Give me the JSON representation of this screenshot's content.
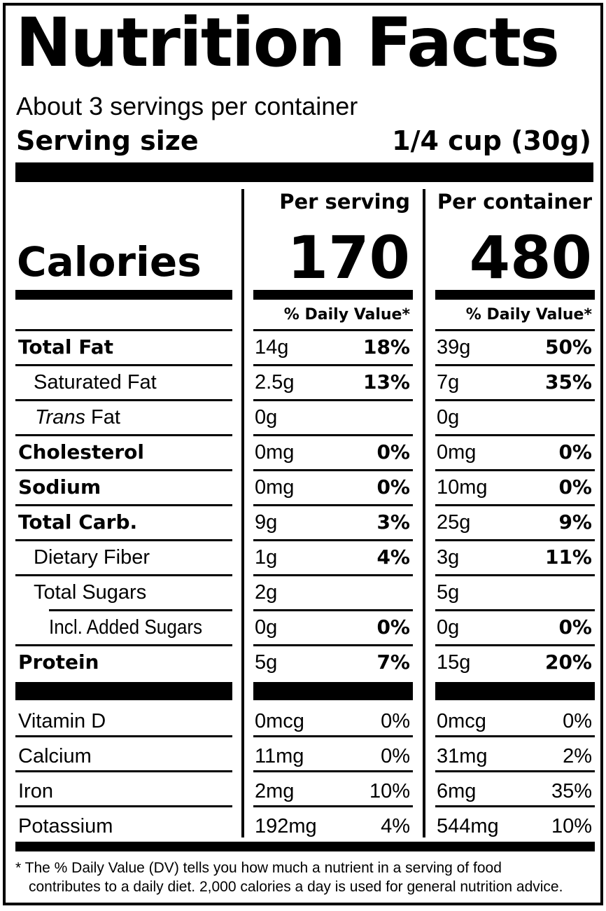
{
  "title": "Nutrition Facts",
  "servings_per_container": "About 3 servings per container",
  "serving_size_label": "Serving size",
  "serving_size_value": "1/4 cup (30g)",
  "columns": {
    "per_serving": "Per serving",
    "per_container": "Per container"
  },
  "calories": {
    "label": "Calories",
    "per_serving": "170",
    "per_container": "480"
  },
  "daily_value_header": "% Daily Value*",
  "nutrients": [
    {
      "name": "Total Fat",
      "name_suffix": "",
      "style": "bold",
      "serving_amount": "14g",
      "serving_dv": "18%",
      "container_amount": "39g",
      "container_dv": "50%"
    },
    {
      "name": "Saturated Fat",
      "name_suffix": "",
      "style": "indent",
      "serving_amount": "2.5g",
      "serving_dv": "13%",
      "container_amount": "7g",
      "container_dv": "35%"
    },
    {
      "name": "Trans",
      "name_suffix": " Fat",
      "style": "indent-italic",
      "serving_amount": "0g",
      "serving_dv": "",
      "container_amount": "0g",
      "container_dv": ""
    },
    {
      "name": "Cholesterol",
      "name_suffix": "",
      "style": "bold",
      "serving_amount": "0mg",
      "serving_dv": "0%",
      "container_amount": "0mg",
      "container_dv": "0%"
    },
    {
      "name": "Sodium",
      "name_suffix": "",
      "style": "bold",
      "serving_amount": "0mg",
      "serving_dv": "0%",
      "container_amount": "10mg",
      "container_dv": "0%"
    },
    {
      "name": "Total Carb.",
      "name_suffix": "",
      "style": "bold",
      "serving_amount": "9g",
      "serving_dv": "3%",
      "container_amount": "25g",
      "container_dv": "9%"
    },
    {
      "name": "Dietary Fiber",
      "name_suffix": "",
      "style": "indent",
      "serving_amount": "1g",
      "serving_dv": "4%",
      "container_amount": "3g",
      "container_dv": "11%"
    },
    {
      "name": "Total Sugars",
      "name_suffix": "",
      "style": "indent",
      "serving_amount": "2g",
      "serving_dv": "",
      "container_amount": "5g",
      "container_dv": ""
    },
    {
      "name": "Incl. Added Sugars",
      "name_suffix": "",
      "style": "indent2",
      "serving_amount": "0g",
      "serving_dv": "0%",
      "container_amount": "0g",
      "container_dv": "0%"
    },
    {
      "name": "Protein",
      "name_suffix": "",
      "style": "bold",
      "serving_amount": "5g",
      "serving_dv": "7%",
      "container_amount": "15g",
      "container_dv": "20%"
    }
  ],
  "vitamins": [
    {
      "name": "Vitamin D",
      "serving_amount": "0mcg",
      "serving_dv": "0%",
      "container_amount": "0mcg",
      "container_dv": "0%"
    },
    {
      "name": "Calcium",
      "serving_amount": "11mg",
      "serving_dv": "0%",
      "container_amount": "31mg",
      "container_dv": "2%"
    },
    {
      "name": "Iron",
      "serving_amount": "2mg",
      "serving_dv": "10%",
      "container_amount": "6mg",
      "container_dv": "35%"
    },
    {
      "name": "Potassium",
      "serving_amount": "192mg",
      "serving_dv": "4%",
      "container_amount": "544mg",
      "container_dv": "10%"
    }
  ],
  "footnote": {
    "line1": "* The % Daily Value (DV) tells you how much a nutrient in a serving of food",
    "line2": "contributes to a daily diet. 2,000 calories a day is used for general nutrition advice."
  }
}
